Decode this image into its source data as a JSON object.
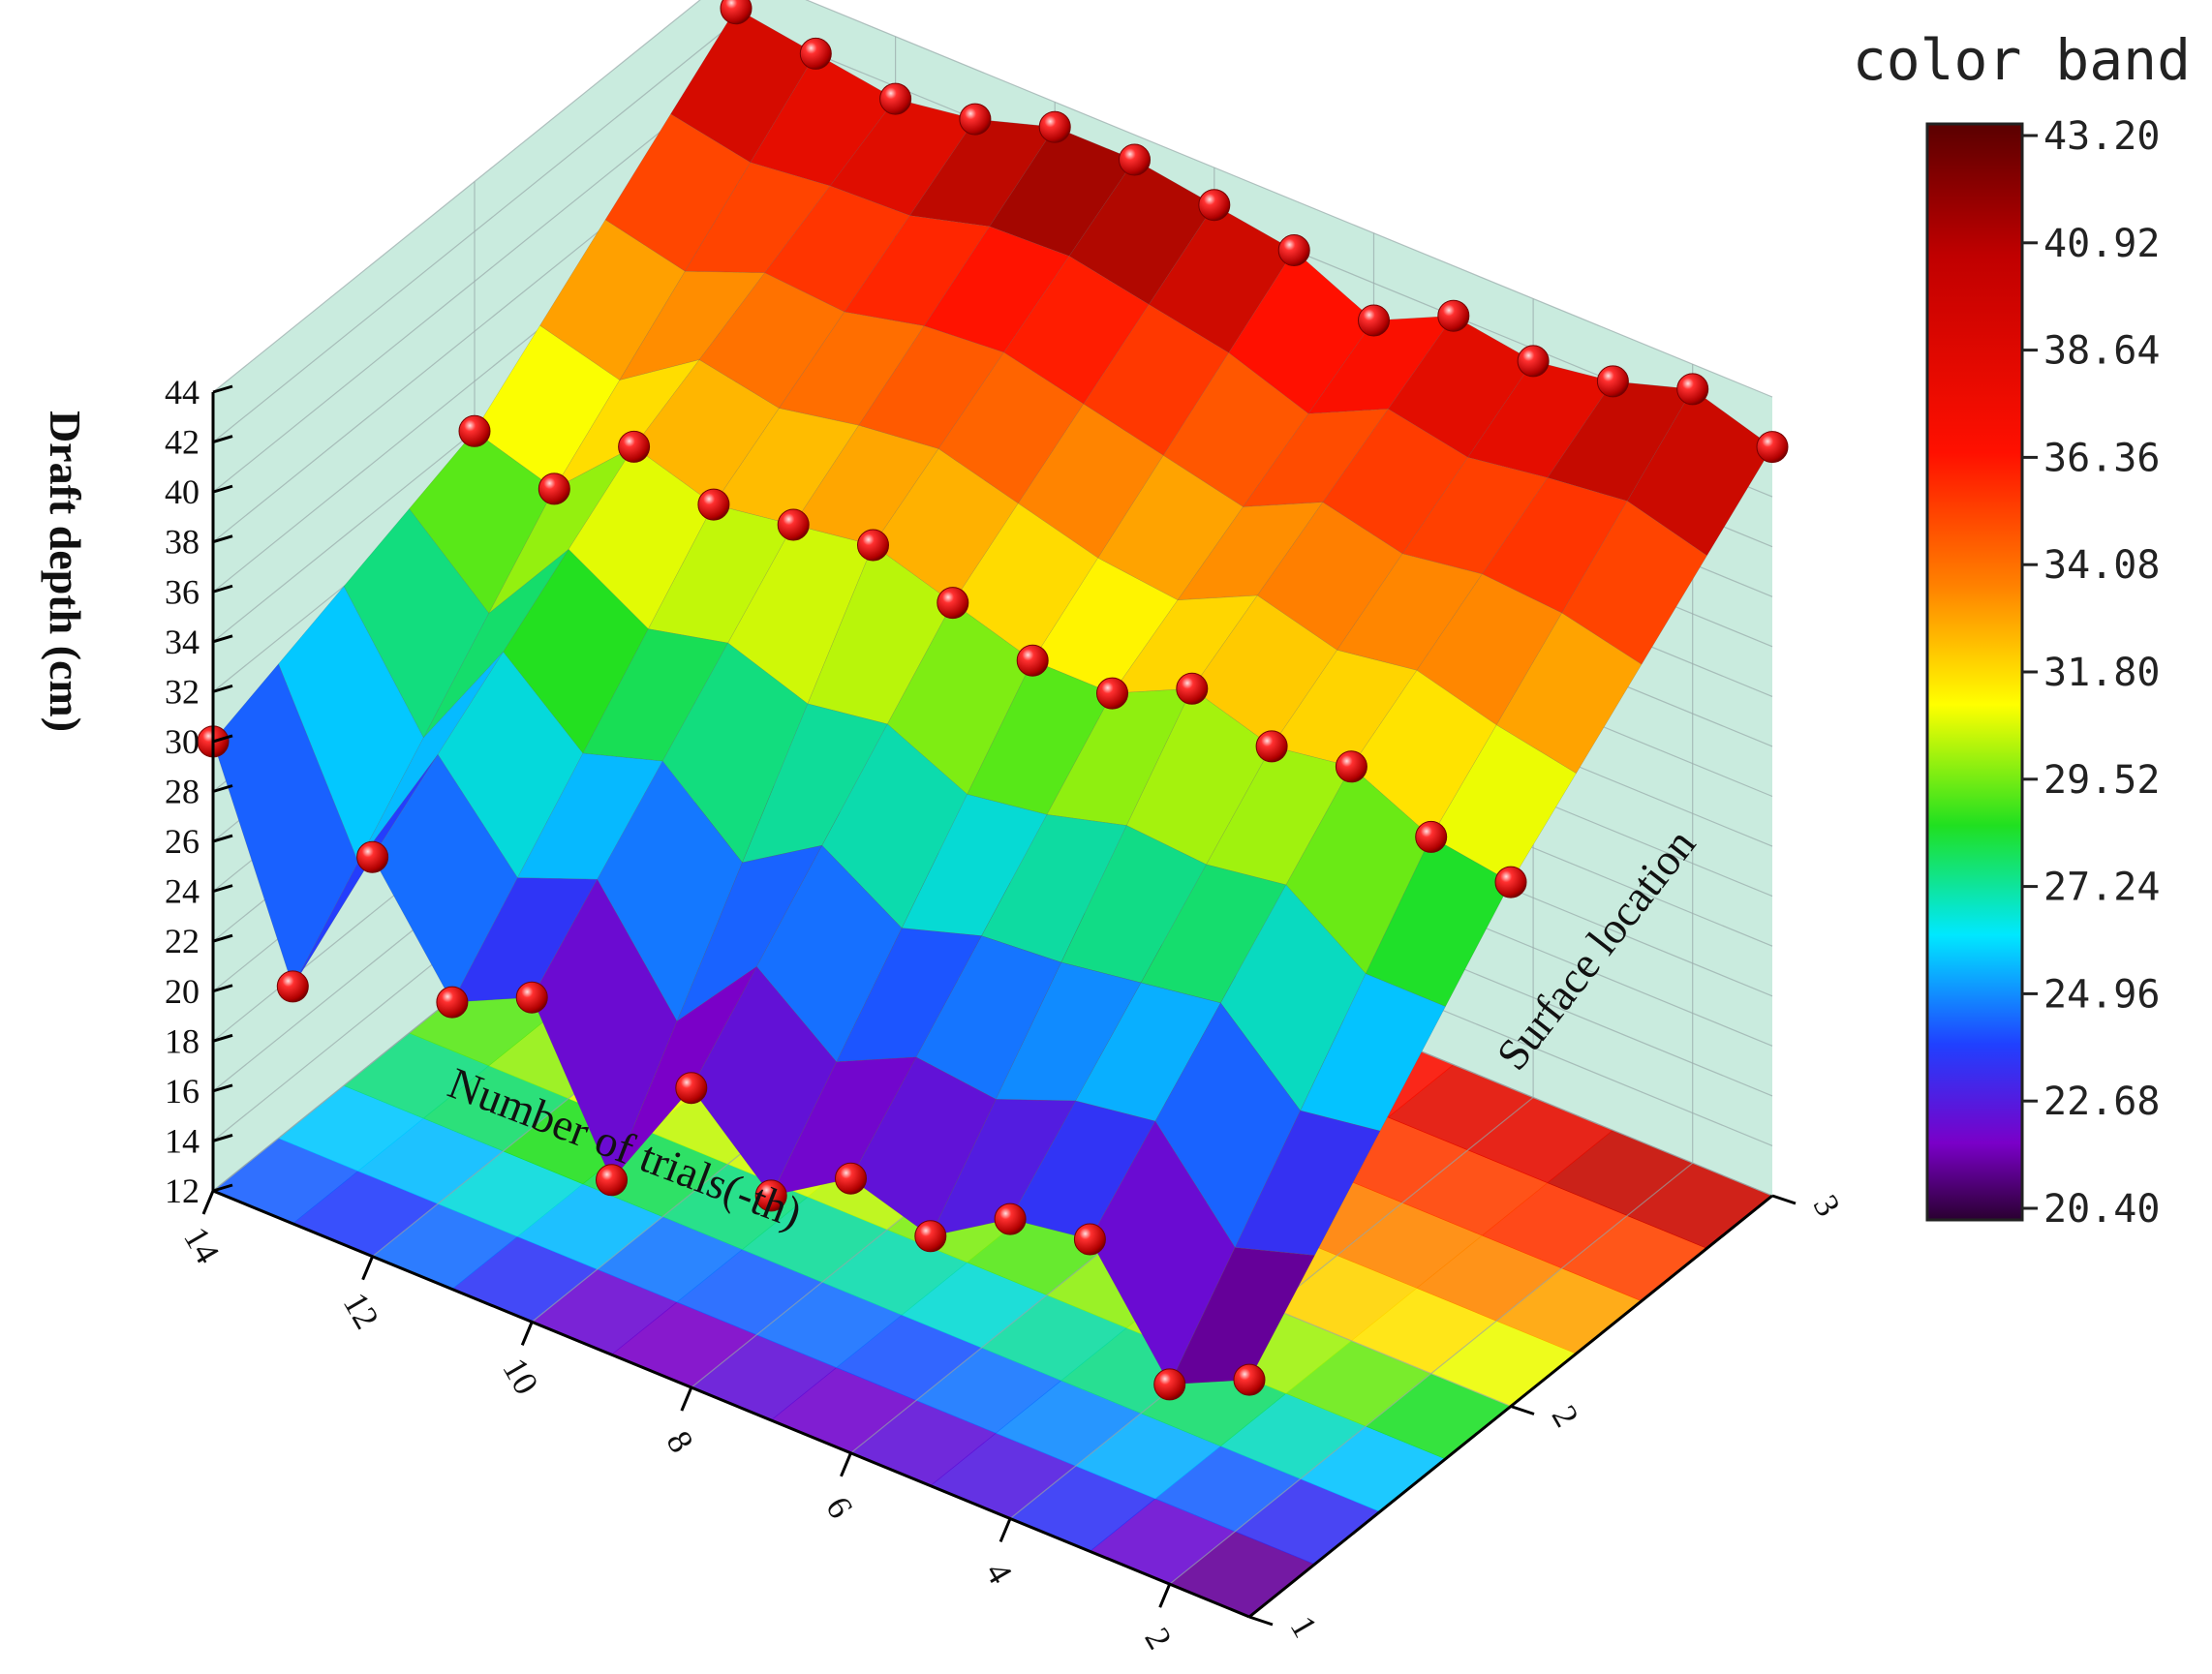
{
  "chart_data": {
    "type": "surface3d",
    "title": "",
    "xlabel": "Number of trials(-th)",
    "ylabel": "Surface location",
    "zlabel": "Draft depth (cm)",
    "x_ticks": [
      "2",
      "4",
      "6",
      "8",
      "10",
      "12",
      "14"
    ],
    "y_ticks": [
      "1",
      "2",
      "3"
    ],
    "z_ticks": [
      "12",
      "14",
      "16",
      "18",
      "20",
      "22",
      "24",
      "26",
      "28",
      "30",
      "32",
      "34",
      "36",
      "38",
      "40",
      "42",
      "44"
    ],
    "xlim": [
      1,
      14
    ],
    "ylim": [
      1,
      3
    ],
    "zlim": [
      12,
      44
    ],
    "x": [
      1,
      2,
      3,
      4,
      5,
      6,
      7,
      8,
      9,
      10,
      11,
      12,
      13,
      14
    ],
    "series": [
      {
        "name": "1",
        "values": [
          21.5,
          20.0,
          24.5,
          24.0,
          22.0,
          23.0,
          21.0,
          24.0,
          19.0,
          25.0,
          23.5,
          28.0,
          21.5,
          30.0
        ]
      },
      {
        "name": "2",
        "values": [
          33.0,
          33.5,
          35.0,
          34.5,
          35.5,
          34.0,
          34.0,
          35.0,
          36.0,
          35.5,
          35.0,
          36.0,
          33.0,
          34.0
        ]
      },
      {
        "name": "3",
        "values": [
          42.0,
          43.0,
          42.0,
          41.5,
          42.0,
          40.5,
          42.0,
          42.5,
          43.0,
          43.0,
          42.0,
          41.5,
          42.0,
          42.5
        ]
      }
    ],
    "colorbar": {
      "title": "color band",
      "ticks": [
        "43.20",
        "40.92",
        "38.64",
        "36.36",
        "34.08",
        "31.80",
        "29.52",
        "27.24",
        "24.96",
        "22.68",
        "20.40"
      ],
      "range": [
        20.4,
        43.2
      ]
    },
    "grid": true,
    "legend": "none",
    "colors": {
      "marker": "#e01010",
      "back_wall": "#bfe8d8",
      "colormap": [
        "#3a003a",
        "#7a00c8",
        "#2040ff",
        "#00d8ff",
        "#20e020",
        "#ffff00",
        "#ff8000",
        "#ff1000",
        "#6a0000"
      ]
    }
  }
}
